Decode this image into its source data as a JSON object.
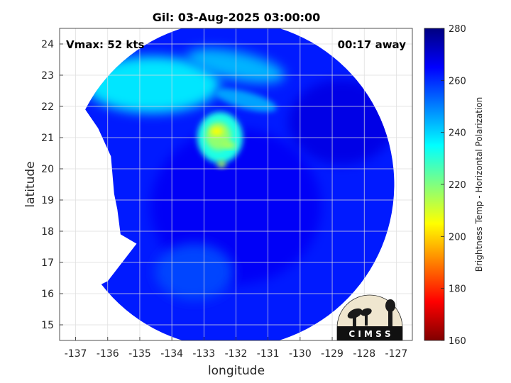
{
  "chart_data": {
    "type": "heatmap",
    "title": "Gil: 03-Aug-2025 03:00:00",
    "xlabel": "longitude",
    "ylabel": "latitude",
    "xlim": [
      -137.5,
      -126.5
    ],
    "ylim": [
      14.5,
      24.5
    ],
    "x_ticks": [
      -137,
      -136,
      -135,
      -134,
      -133,
      -132,
      -131,
      -130,
      -129,
      -128,
      -127
    ],
    "y_ticks": [
      15,
      16,
      17,
      18,
      19,
      20,
      21,
      22,
      23,
      24
    ],
    "grid": true,
    "annotations": {
      "vmax": "Vmax: 52 kts",
      "time_offset": "00:17 away"
    },
    "colorbar": {
      "label": "Brightness Temp - Horizontal Polarization",
      "range": [
        160,
        280
      ],
      "ticks": [
        160,
        180,
        200,
        220,
        240,
        260,
        280
      ],
      "colormap": "jet",
      "colors": [
        "#800000",
        "#ff0000",
        "#ff8000",
        "#ffff00",
        "#80ff80",
        "#00ffff",
        "#0080ff",
        "#0000ff",
        "#000080"
      ]
    },
    "swath": {
      "center_lon": -131.7,
      "center_lat": 19.6,
      "radius_deg": 5.1,
      "boundary": [
        [
          -136.7,
          21.9
        ],
        [
          -136.3,
          21.3
        ],
        [
          -135.9,
          20.4
        ],
        [
          -135.8,
          19.2
        ],
        [
          -135.7,
          18.7
        ],
        [
          -135.6,
          17.9
        ],
        [
          -135.1,
          17.6
        ],
        [
          -136.0,
          16.4
        ],
        [
          -136.2,
          16.3
        ]
      ]
    },
    "brightness_temperature": {
      "background": 262,
      "outer_band_northwest": 238,
      "coldest_core": 205,
      "core_lon": -132.6,
      "core_lat": 21.0
    }
  },
  "logo": {
    "text": "C I M S S"
  }
}
